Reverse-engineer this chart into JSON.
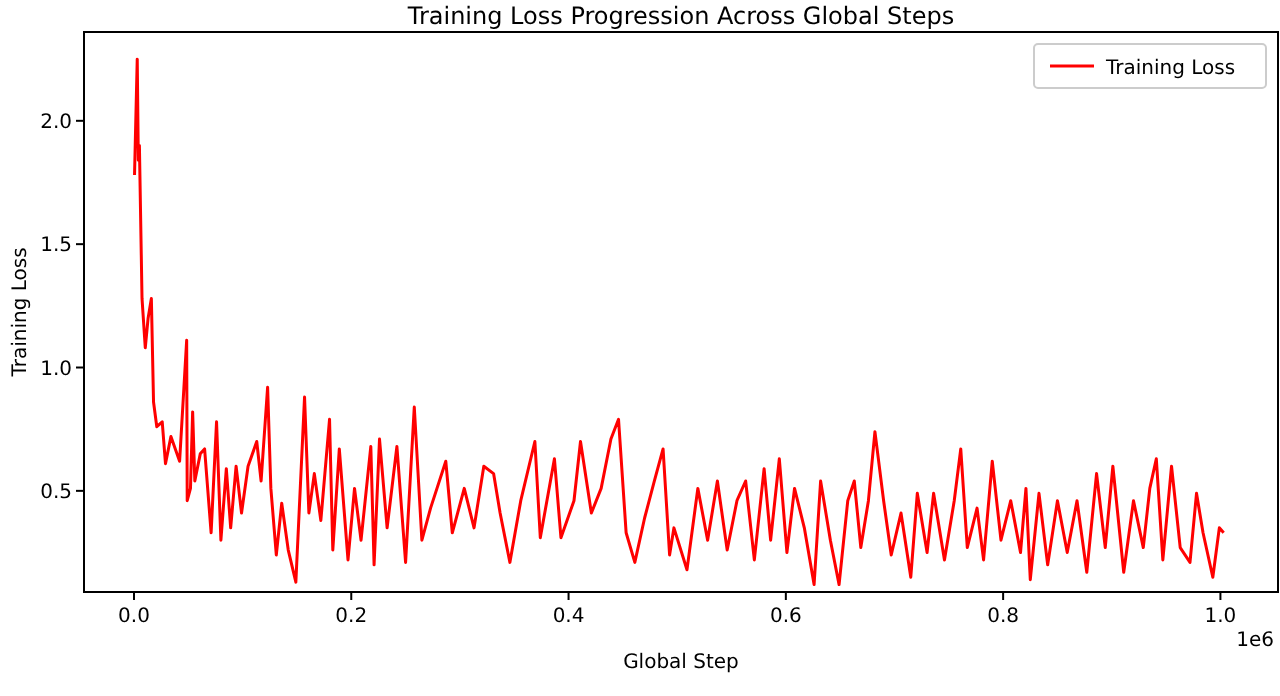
{
  "chart_data": {
    "type": "line",
    "title": "Training Loss Progression Across Global Steps",
    "xlabel": "Global Step",
    "ylabel": "Training Loss",
    "annotations": [
      "1e6"
    ],
    "xlim": [
      -0.046,
      1.053
    ],
    "ylim": [
      0.09,
      2.36
    ],
    "xticks": [
      {
        "value": 0,
        "label": "0.0"
      },
      0.2,
      0.4,
      0.6,
      0.8,
      {
        "value": 1,
        "label": "1.0"
      }
    ],
    "yticks": [
      0.5,
      {
        "value": 1,
        "label": "1.0"
      },
      1.5,
      {
        "value": 2,
        "label": "2.0"
      }
    ],
    "grid": false,
    "legend": "top right",
    "x": [
      0.0005,
      0.003,
      0.004,
      0.005,
      0.0074,
      0.0104,
      0.013,
      0.016,
      0.018,
      0.021,
      0.026,
      0.029,
      0.034,
      0.042,
      0.0485,
      0.049,
      0.052,
      0.054,
      0.056,
      0.061,
      0.065,
      0.071,
      0.076,
      0.08,
      0.085,
      0.089,
      0.094,
      0.099,
      0.105,
      0.113,
      0.117,
      0.123,
      0.126,
      0.131,
      0.136,
      0.142,
      0.149,
      0.157,
      0.161,
      0.166,
      0.172,
      0.18,
      0.183,
      0.189,
      0.197,
      0.203,
      0.209,
      0.218,
      0.221,
      0.226,
      0.233,
      0.242,
      0.25,
      0.258,
      0.265,
      0.273,
      0.287,
      0.293,
      0.304,
      0.313,
      0.322,
      0.331,
      0.337,
      0.346,
      0.356,
      0.369,
      0.374,
      0.387,
      0.393,
      0.405,
      0.411,
      0.421,
      0.43,
      0.439,
      0.446,
      0.453,
      0.461,
      0.47,
      0.479,
      0.487,
      0.493,
      0.497,
      0.509,
      0.519,
      0.528,
      0.537,
      0.546,
      0.555,
      0.563,
      0.571,
      0.58,
      0.586,
      0.594,
      0.601,
      0.608,
      0.617,
      0.626,
      0.632,
      0.641,
      0.649,
      0.657,
      0.663,
      0.669,
      0.676,
      0.682,
      0.69,
      0.697,
      0.706,
      0.715,
      0.721,
      0.73,
      0.736,
      0.746,
      0.755,
      0.761,
      0.767,
      0.776,
      0.782,
      0.79,
      0.798,
      0.807,
      0.816,
      0.821,
      0.825,
      0.833,
      0.841,
      0.85,
      0.859,
      0.868,
      0.877,
      0.886,
      0.894,
      0.901,
      0.911,
      0.92,
      0.929,
      0.935,
      0.941,
      0.947,
      0.955,
      0.963,
      0.972,
      0.978,
      0.984,
      0.993,
      0.999,
      1.003
    ],
    "series": [
      {
        "name": "Training Loss",
        "color": "#ff0000",
        "values": [
          1.78,
          2.25,
          1.84,
          1.9,
          1.28,
          1.08,
          1.2,
          1.28,
          0.86,
          0.76,
          0.78,
          0.61,
          0.72,
          0.62,
          1.11,
          0.46,
          0.51,
          0.82,
          0.54,
          0.65,
          0.67,
          0.33,
          0.78,
          0.3,
          0.59,
          0.35,
          0.6,
          0.41,
          0.6,
          0.7,
          0.54,
          0.92,
          0.51,
          0.24,
          0.45,
          0.26,
          0.13,
          0.88,
          0.41,
          0.57,
          0.38,
          0.79,
          0.26,
          0.67,
          0.22,
          0.51,
          0.3,
          0.68,
          0.2,
          0.71,
          0.35,
          0.68,
          0.21,
          0.84,
          0.3,
          0.43,
          0.62,
          0.33,
          0.51,
          0.35,
          0.6,
          0.57,
          0.41,
          0.21,
          0.46,
          0.7,
          0.31,
          0.63,
          0.31,
          0.46,
          0.7,
          0.41,
          0.51,
          0.71,
          0.79,
          0.33,
          0.21,
          0.39,
          0.54,
          0.67,
          0.24,
          0.35,
          0.18,
          0.51,
          0.3,
          0.54,
          0.26,
          0.46,
          0.54,
          0.22,
          0.59,
          0.3,
          0.63,
          0.25,
          0.51,
          0.35,
          0.12,
          0.54,
          0.3,
          0.12,
          0.46,
          0.54,
          0.27,
          0.46,
          0.74,
          0.46,
          0.24,
          0.41,
          0.15,
          0.49,
          0.25,
          0.49,
          0.22,
          0.46,
          0.67,
          0.27,
          0.43,
          0.22,
          0.62,
          0.3,
          0.46,
          0.25,
          0.51,
          0.14,
          0.49,
          0.2,
          0.46,
          0.25,
          0.46,
          0.17,
          0.57,
          0.27,
          0.6,
          0.17,
          0.46,
          0.27,
          0.51,
          0.63,
          0.22,
          0.6,
          0.27,
          0.21,
          0.49,
          0.33,
          0.15,
          0.35,
          0.33
        ]
      }
    ]
  }
}
